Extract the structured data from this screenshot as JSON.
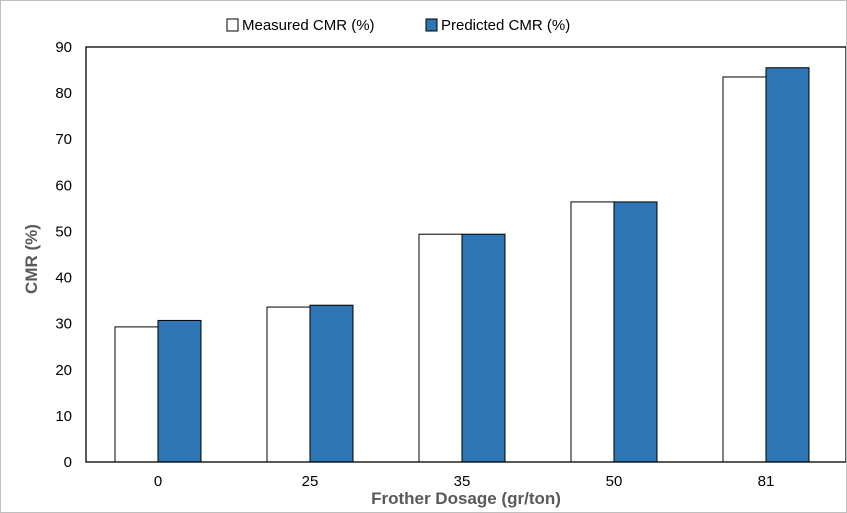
{
  "chart_data": {
    "type": "bar",
    "categories": [
      "0",
      "25",
      "35",
      "50",
      "81"
    ],
    "series": [
      {
        "name": "Measured CMR (%)",
        "values": [
          29.3,
          33.6,
          49.4,
          56.4,
          83.5
        ],
        "color": "#ffffff",
        "stroke": "#000000"
      },
      {
        "name": "Predicted CMR (%)",
        "values": [
          30.7,
          34.0,
          49.4,
          56.4,
          85.5
        ],
        "color": "#2e75b6",
        "stroke": "#000000"
      }
    ],
    "xlabel": "Frother Dosage (gr/ton)",
    "ylabel": "CMR (%)",
    "ylim": [
      0,
      90
    ],
    "yticks": [
      "0",
      "10",
      "20",
      "30",
      "40",
      "50",
      "60",
      "70",
      "80",
      "90"
    ],
    "grid": false,
    "legend": "top-center"
  }
}
